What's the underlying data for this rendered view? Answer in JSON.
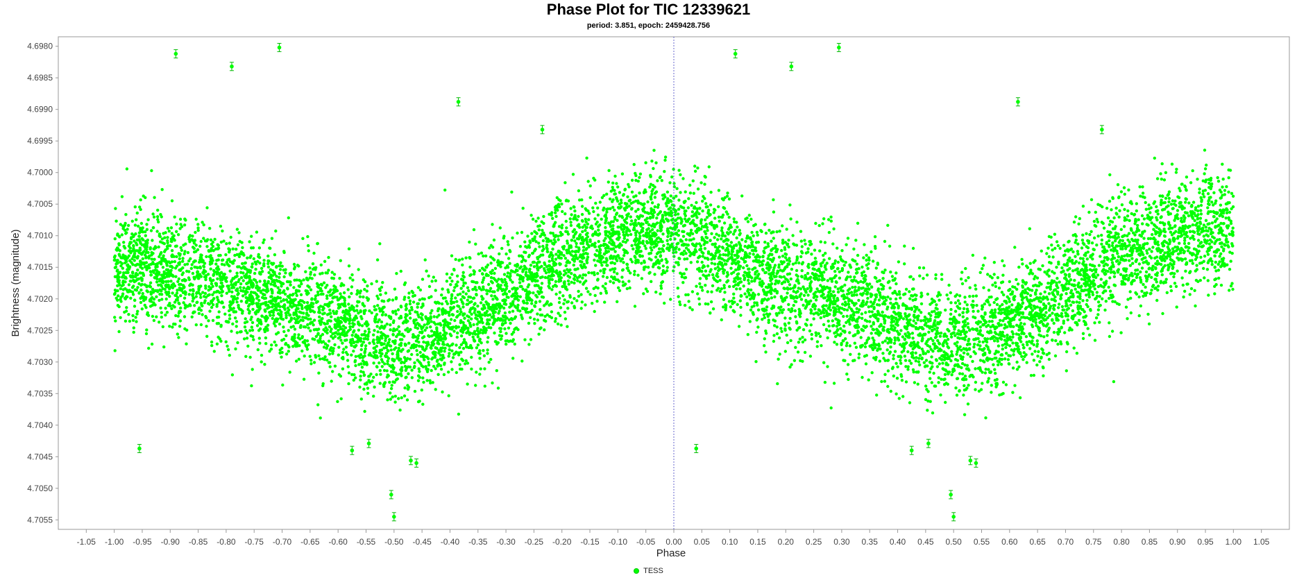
{
  "chart_data": {
    "type": "scatter",
    "title": "Phase Plot for TIC 12339621",
    "subtitle": "period: 3.851, epoch: 2459428.756",
    "xlabel": "Phase",
    "ylabel": "Brightness (magnitude)",
    "xlim": [
      -1.1,
      1.1
    ],
    "ylim": [
      4.69785,
      4.70565
    ],
    "y_inverted": true,
    "x_ticks": [
      "-1.05",
      "-1.00",
      "-0.95",
      "-0.90",
      "-0.85",
      "-0.80",
      "-0.75",
      "-0.70",
      "-0.65",
      "-0.60",
      "-0.55",
      "-0.50",
      "-0.45",
      "-0.40",
      "-0.35",
      "-0.30",
      "-0.25",
      "-0.20",
      "-0.15",
      "-0.10",
      "-0.05",
      "0.00",
      "0.05",
      "0.10",
      "0.15",
      "0.20",
      "0.25",
      "0.30",
      "0.35",
      "0.40",
      "0.45",
      "0.50",
      "0.55",
      "0.60",
      "0.65",
      "0.70",
      "0.75",
      "0.80",
      "0.85",
      "0.90",
      "0.95",
      "1.00",
      "1.05"
    ],
    "y_ticks": [
      "4.6980",
      "4.6985",
      "4.6990",
      "4.6995",
      "4.7000",
      "4.7005",
      "4.7010",
      "4.7015",
      "4.7020",
      "4.7025",
      "4.7030",
      "4.7035",
      "4.7040",
      "4.7045",
      "4.7050",
      "4.7055"
    ],
    "series": [
      {
        "name": "TESS",
        "color": "#00ff00",
        "points": [
          [
            -1.0,
            4.7016
          ],
          [
            -0.95,
            4.7014
          ],
          [
            -0.9,
            4.7016
          ],
          [
            -0.85,
            4.7016
          ],
          [
            -0.8,
            4.7018
          ],
          [
            -0.75,
            4.7019
          ],
          [
            -0.7,
            4.7021
          ],
          [
            -0.65,
            4.7022
          ],
          [
            -0.6,
            4.7024
          ],
          [
            -0.55,
            4.7026
          ],
          [
            -0.5,
            4.7027
          ],
          [
            -0.45,
            4.7026
          ],
          [
            -0.4,
            4.7024
          ],
          [
            -0.35,
            4.7022
          ],
          [
            -0.3,
            4.7019
          ],
          [
            -0.25,
            4.7016
          ],
          [
            -0.2,
            4.7013
          ],
          [
            -0.15,
            4.7011
          ],
          [
            -0.1,
            4.701
          ],
          [
            -0.05,
            4.7009
          ],
          [
            0.0,
            4.7009
          ],
          [
            0.05,
            4.7011
          ],
          [
            0.1,
            4.7013
          ],
          [
            0.15,
            4.7016
          ],
          [
            0.2,
            4.7018
          ],
          [
            0.25,
            4.7019
          ],
          [
            0.3,
            4.7021
          ],
          [
            0.35,
            4.7022
          ],
          [
            0.4,
            4.7024
          ],
          [
            0.45,
            4.7026
          ],
          [
            0.5,
            4.7027
          ],
          [
            0.55,
            4.7026
          ],
          [
            0.6,
            4.7024
          ],
          [
            0.65,
            4.7022
          ],
          [
            0.7,
            4.7019
          ],
          [
            0.75,
            4.7016
          ],
          [
            0.8,
            4.7013
          ],
          [
            0.85,
            4.7011
          ],
          [
            0.9,
            4.701
          ],
          [
            0.95,
            4.7009
          ],
          [
            1.0,
            4.7009
          ]
        ],
        "outliers": [
          [
            -0.89,
            4.69812
          ],
          [
            -0.79,
            4.69832
          ],
          [
            -0.705,
            4.69802
          ],
          [
            -0.385,
            4.69888
          ],
          [
            -0.235,
            4.69932
          ],
          [
            -0.955,
            4.70437
          ],
          [
            -0.575,
            4.7044
          ],
          [
            -0.505,
            4.7051
          ],
          [
            -0.5,
            4.70545
          ],
          [
            -0.47,
            4.70456
          ],
          [
            -0.46,
            4.7046
          ],
          [
            -0.545,
            4.70429
          ],
          [
            0.11,
            4.69812
          ],
          [
            0.21,
            4.69832
          ],
          [
            0.295,
            4.69802
          ],
          [
            0.615,
            4.69888
          ],
          [
            0.765,
            4.69932
          ],
          [
            0.04,
            4.70437
          ],
          [
            0.425,
            4.7044
          ],
          [
            0.495,
            4.7051
          ],
          [
            0.5,
            4.70545
          ],
          [
            0.53,
            4.70456
          ],
          [
            0.54,
            4.7046
          ],
          [
            0.455,
            4.70429
          ]
        ]
      }
    ],
    "vertical_marker_x": 0.0,
    "legend_position": "bottom-center",
    "grid": false
  }
}
